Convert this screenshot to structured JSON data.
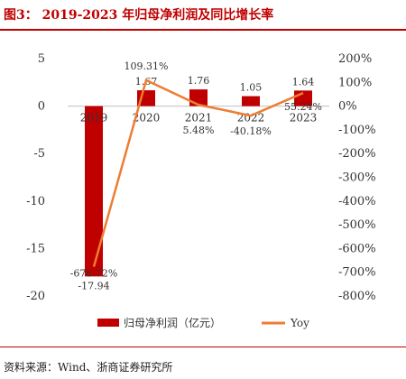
{
  "figure": {
    "title": "图3： 2019-2023 年归母净利润及同比增长率",
    "source": "资料来源：Wind、浙商证券研究所"
  },
  "colors": {
    "bar": "#c00000",
    "line": "#ed7d31",
    "accent": "#c00000"
  },
  "chart_data": {
    "type": "bar",
    "categories": [
      "2019",
      "2020",
      "2021",
      "2022",
      "2023"
    ],
    "series": [
      {
        "name": "归母净利润（亿元）",
        "type": "bar",
        "axis": "left",
        "values": [
          -17.94,
          1.67,
          1.76,
          1.05,
          1.64
        ],
        "labels": [
          "-17.94",
          "1.67",
          "1.76",
          "1.05",
          "1.64"
        ]
      },
      {
        "name": "Yoy",
        "type": "line",
        "axis": "right",
        "values": [
          -676.72,
          109.31,
          5.48,
          -40.18,
          55.24
        ],
        "labels": [
          "-676.72%",
          "109.31%",
          "5.48%",
          "-40.18%",
          "55.24%"
        ]
      }
    ],
    "y_left": {
      "ylim": [
        -20,
        5
      ],
      "ticks": [
        "5",
        "0",
        "-5",
        "-10",
        "-15",
        "-20"
      ]
    },
    "y_right": {
      "ylim": [
        -800,
        200
      ],
      "ticks": [
        "200%",
        "100%",
        "0%",
        "-100%",
        "-200%",
        "-300%",
        "-400%",
        "-500%",
        "-600%",
        "-700%",
        "-800%"
      ]
    },
    "legend": "bottom",
    "grid": false
  }
}
